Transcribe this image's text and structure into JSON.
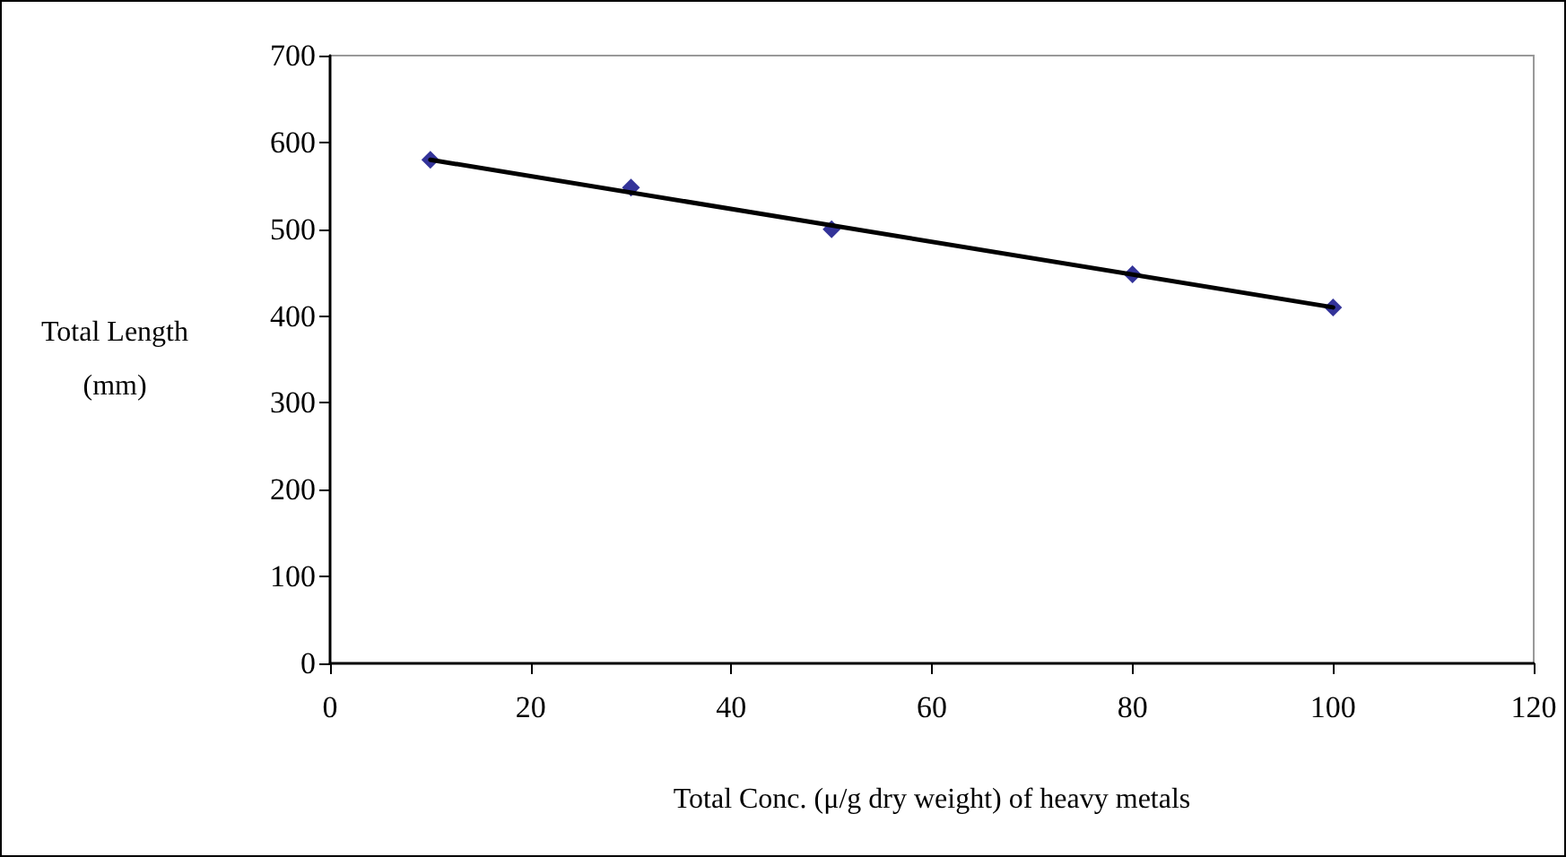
{
  "chart_data": {
    "type": "scatter",
    "xlabel": "Total Conc. (μ/g dry weight) of heavy metals",
    "ylabel": "Total Length (mm)",
    "x": [
      10,
      30,
      50,
      80,
      100
    ],
    "series": [
      {
        "color": "#000080",
        "marker": "diamond",
        "values": [
          580,
          548,
          500,
          448,
          410
        ]
      },
      {
        "type": "line",
        "color": "#000000",
        "marker": "none",
        "x": [
          10,
          100
        ],
        "values": [
          580,
          410
        ]
      }
    ],
    "xlim": [
      0,
      120
    ],
    "xticks": [
      0,
      20,
      40,
      60,
      80,
      100,
      120
    ],
    "ylim": [
      0,
      700
    ],
    "yticks": [
      0,
      100,
      200,
      300,
      400,
      500,
      600,
      700
    ],
    "grid": false
  }
}
